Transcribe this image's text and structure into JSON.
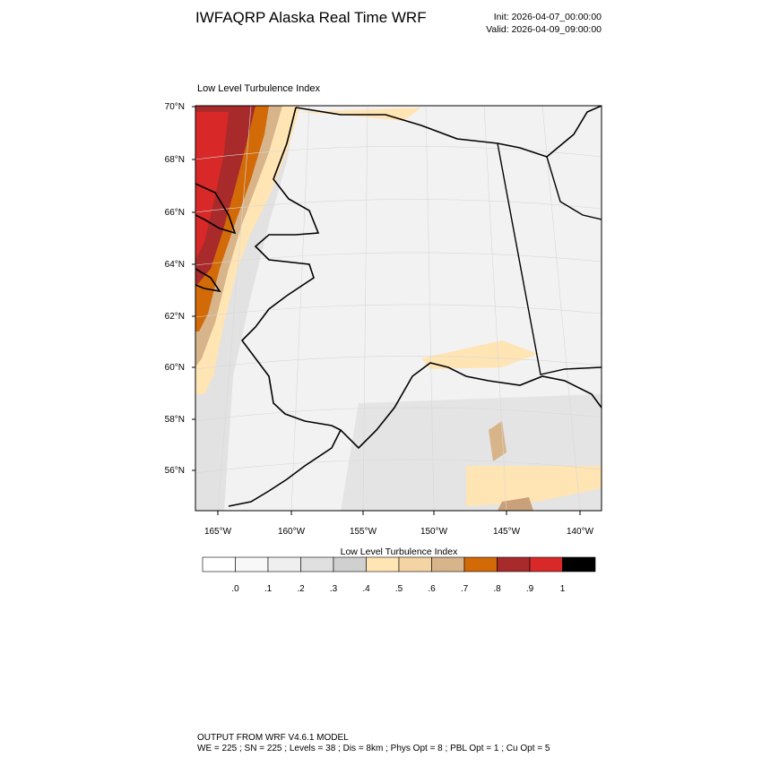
{
  "header": {
    "title": "IWFAQRP Alaska Real Time WRF",
    "init": "Init: 2026-04-07_00:00:00",
    "valid": "Valid: 2026-04-09_09:00:00"
  },
  "map": {
    "title": "Low Level Turbulence Index",
    "lat_labels": [
      "70°N",
      "68°N",
      "66°N",
      "64°N",
      "62°N",
      "60°N",
      "58°N",
      "56°N"
    ],
    "lon_labels": [
      "165°W",
      "160°W",
      "155°W",
      "150°W",
      "145°W",
      "140°W"
    ]
  },
  "colorbar": {
    "title": "Low Level Turbulence Index",
    "labels": [
      ".0",
      ".1",
      ".2",
      ".3",
      ".4",
      ".5",
      ".6",
      ".7",
      ".8",
      ".9",
      "1"
    ],
    "colors": [
      "#ffffff",
      "#f8f8f8",
      "#efefef",
      "#e0e0e0",
      "#d0d0d0",
      "#ffe4b4",
      "#f4d4a4",
      "#d8b48a",
      "#d26a08",
      "#a82a2a",
      "#d82828",
      "#000000"
    ]
  },
  "footer": {
    "line1": "OUTPUT FROM WRF V4.6.1 MODEL",
    "line2": "WE = 225 ; SN = 225 ; Levels = 38 ; Dis = 8km ; Phys Opt = 8 ; PBL Opt = 1 ; Cu Opt = 5"
  }
}
